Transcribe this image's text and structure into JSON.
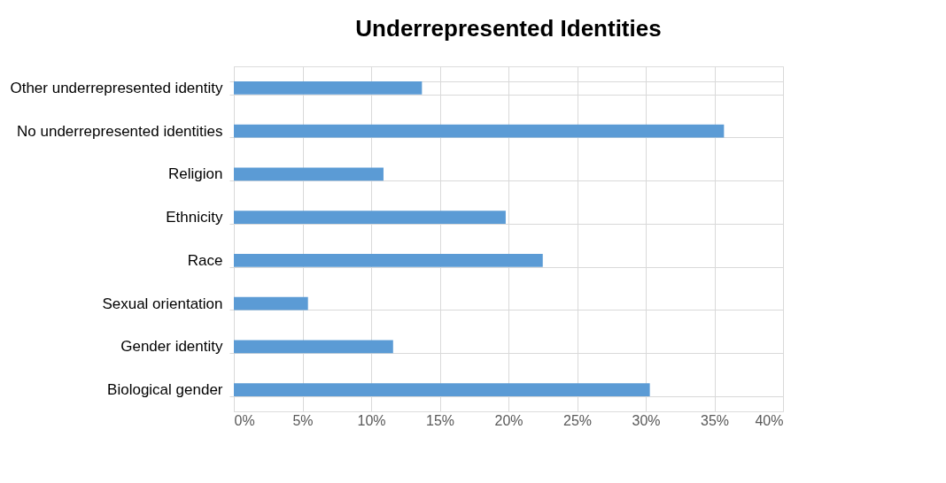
{
  "chart_data": {
    "type": "bar",
    "orientation": "horizontal",
    "title": "Underrepresented Identities",
    "categories": [
      "Other underrepresented identity",
      "No underrepresented identities",
      "Religion",
      "Ethnicity",
      "Race",
      "Sexual orientation",
      "Gender identity",
      "Biological gender"
    ],
    "values": [
      13.7,
      35.7,
      10.9,
      19.8,
      22.5,
      5.4,
      11.6,
      30.3
    ],
    "color": "#5b9bd5",
    "xlim": [
      0,
      40
    ],
    "xticks": [
      {
        "value": 0,
        "label": "0%"
      },
      {
        "value": 5,
        "label": "5%"
      },
      {
        "value": 10,
        "label": "10%"
      },
      {
        "value": 15,
        "label": "15%"
      },
      {
        "value": 20,
        "label": "20%"
      },
      {
        "value": 25,
        "label": "25%"
      },
      {
        "value": 30,
        "label": "30%"
      },
      {
        "value": 35,
        "label": "35%"
      },
      {
        "value": 40,
        "label": "40%"
      }
    ],
    "grid": true
  }
}
